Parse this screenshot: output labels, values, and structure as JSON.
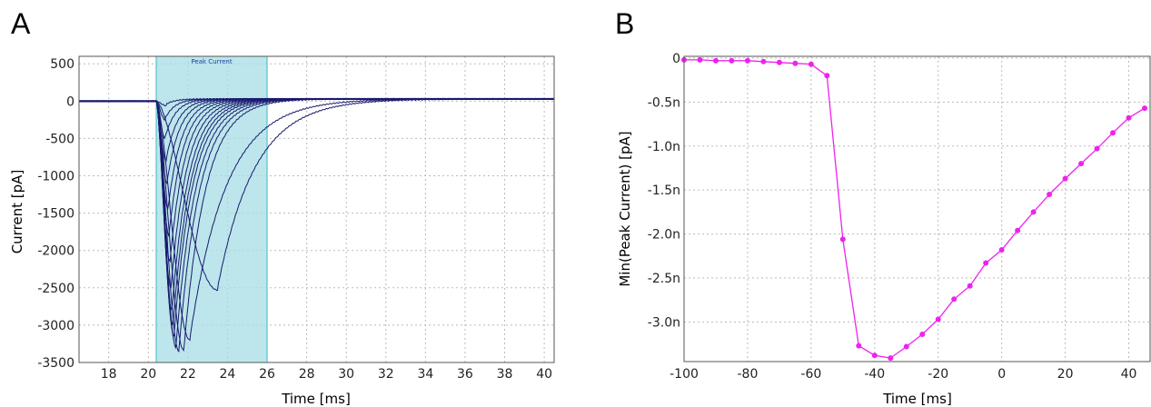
{
  "panel_labels": {
    "a": "A",
    "b": "B"
  },
  "chart_data": [
    {
      "panel": "A",
      "type": "line",
      "xlabel": "Time [ms]",
      "ylabel": "Current [pA]",
      "xlim": [
        16.5,
        40.5
      ],
      "ylim": [
        -3500,
        600
      ],
      "x_ticks": [
        18,
        20,
        22,
        24,
        26,
        28,
        30,
        32,
        34,
        36,
        38,
        40
      ],
      "y_ticks": [
        500,
        0,
        -500,
        -1000,
        -1500,
        -2000,
        -2500,
        -3000,
        -3500
      ],
      "grid": true,
      "shaded_region": {
        "label": "Peak Current",
        "x_start": 20.4,
        "x_end": 26.0,
        "color": "#a6dde4"
      },
      "line_color": "#1a1a6e",
      "onset_ms": 20.4,
      "traces": [
        {
          "peak_time": 20.9,
          "peak": -60
        },
        {
          "peak_time": 20.85,
          "peak": -250
        },
        {
          "peak_time": 20.85,
          "peak": -500
        },
        {
          "peak_time": 20.9,
          "peak": -800
        },
        {
          "peak_time": 20.95,
          "peak": -1100
        },
        {
          "peak_time": 21.0,
          "peak": -1450
        },
        {
          "peak_time": 21.05,
          "peak": -1800
        },
        {
          "peak_time": 21.1,
          "peak": -2150
        },
        {
          "peak_time": 21.15,
          "peak": -2500
        },
        {
          "peak_time": 21.2,
          "peak": -2800
        },
        {
          "peak_time": 21.25,
          "peak": -3000
        },
        {
          "peak_time": 21.3,
          "peak": -3150
        },
        {
          "peak_time": 21.4,
          "peak": -3300
        },
        {
          "peak_time": 21.55,
          "peak": -3350
        },
        {
          "peak_time": 21.8,
          "peak": -3340
        },
        {
          "peak_time": 22.1,
          "peak": -3200
        },
        {
          "peak_time": 23.5,
          "peak": -2530
        }
      ]
    },
    {
      "panel": "B",
      "type": "line",
      "xlabel": "Time [ms]",
      "ylabel": "Min(Peak Current) [pA]",
      "xlim": [
        -100,
        47
      ],
      "ylim": [
        -3.45,
        0.02
      ],
      "x_ticks": [
        -100,
        -80,
        -60,
        -40,
        -20,
        0,
        20,
        40
      ],
      "y_ticks": [
        0,
        -0.5,
        -1.0,
        -1.5,
        -2.0,
        -2.5,
        -3.0
      ],
      "y_tick_labels": [
        "0",
        "-0.5n",
        "-1.0n",
        "-1.5n",
        "-2.0n",
        "-2.5n",
        "-3.0n"
      ],
      "grid": true,
      "line_color": "#ee22ee",
      "series": [
        {
          "x": [
            -100,
            -95,
            -90,
            -85,
            -80,
            -75,
            -70,
            -65,
            -60,
            -55,
            -50,
            -45,
            -40,
            -35,
            -30,
            -25,
            -20,
            -15,
            -10,
            -5,
            0,
            5,
            10,
            15,
            20,
            25,
            30,
            35,
            40,
            45
          ],
          "y": [
            -0.02,
            -0.02,
            -0.03,
            -0.03,
            -0.03,
            -0.04,
            -0.05,
            -0.06,
            -0.07,
            -0.2,
            -2.06,
            -3.27,
            -3.38,
            -3.41,
            -3.28,
            -3.14,
            -2.97,
            -2.74,
            -2.59,
            -2.33,
            -2.18,
            -1.96,
            -1.75,
            -1.55,
            -1.37,
            -1.2,
            -1.03,
            -0.85,
            -0.68,
            -0.57
          ]
        }
      ]
    }
  ]
}
